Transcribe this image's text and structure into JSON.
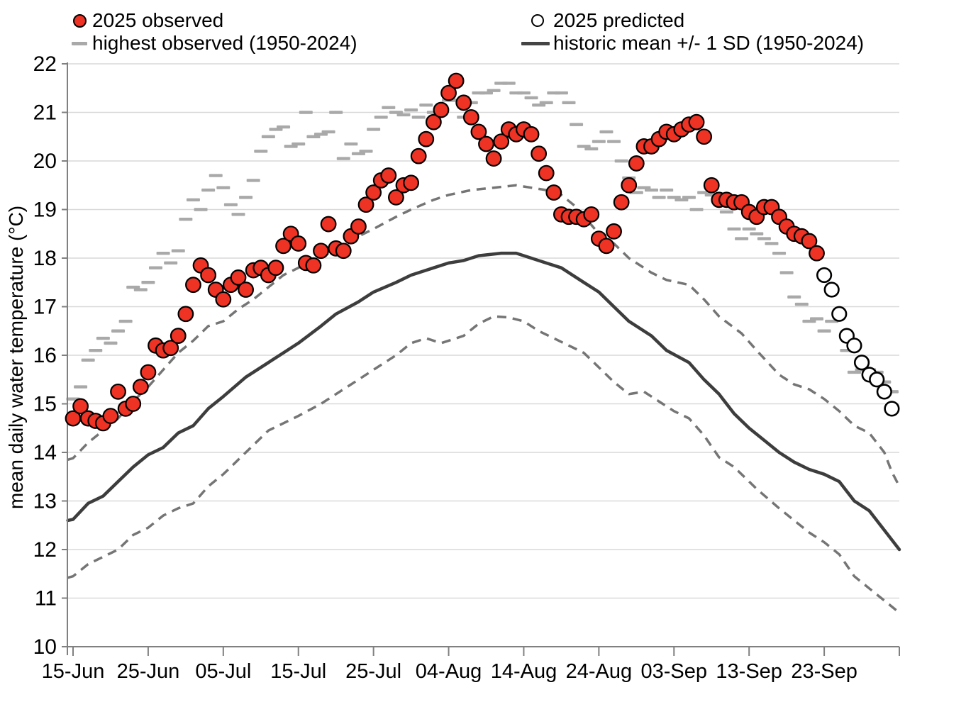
{
  "chart": {
    "y_axis_label": "mean daily water temperature (°C)",
    "legend": [
      {
        "label": "2025 observed",
        "marker": "red-dot-icon"
      },
      {
        "label": "highest observed (1950-2024)",
        "marker": "gray-dash-icon"
      },
      {
        "label": "2025 predicted",
        "marker": "open-circle-icon"
      },
      {
        "label": "historic mean +/- 1 SD (1950-2024)",
        "marker": "dark-line-icon"
      }
    ],
    "colors": {
      "observed_fill": "#ee3224",
      "marker_outline": "#000000",
      "predicted_fill": "#ffffff",
      "highest_dash": "#a9a9a9",
      "sd_dashed_line": "#757575",
      "mean_line": "#3d3d3d",
      "gridline": "#d9d9d9",
      "axis": "#808080",
      "text": "#000000"
    }
  },
  "chart_data": {
    "type": "scatter",
    "title": "",
    "xlabel": "",
    "ylabel": "mean daily water temperature (°C)",
    "ylim": [
      10,
      22
    ],
    "y_ticks": [
      10,
      11,
      12,
      13,
      14,
      15,
      16,
      17,
      18,
      19,
      20,
      21,
      22
    ],
    "x_domain_days": [
      0,
      110
    ],
    "x_tick_days": [
      0,
      10,
      20,
      30,
      40,
      50,
      60,
      70,
      80,
      90,
      100
    ],
    "x_tick_labels": [
      "15-Jun",
      "25-Jun",
      "05-Jul",
      "15-Jul",
      "25-Jul",
      "04-Aug",
      "14-Aug",
      "24-Aug",
      "03-Sep",
      "13-Sep",
      "23-Sep"
    ],
    "grid": "horizontal-only",
    "legend_position": "top",
    "series": [
      {
        "name": "2025 observed",
        "type": "scatter",
        "marker": "filled-circle",
        "start_day": 0,
        "values": [
          14.7,
          14.95,
          14.7,
          14.65,
          14.6,
          14.75,
          15.25,
          14.9,
          15.0,
          15.35,
          15.65,
          16.2,
          16.1,
          16.15,
          16.4,
          16.85,
          17.45,
          17.85,
          17.65,
          17.35,
          17.15,
          17.45,
          17.6,
          17.35,
          17.75,
          17.8,
          17.65,
          17.8,
          18.25,
          18.5,
          18.3,
          17.9,
          17.85,
          18.15,
          18.7,
          18.2,
          18.15,
          18.45,
          18.65,
          19.1,
          19.35,
          19.6,
          19.7,
          19.25,
          19.5,
          19.55,
          20.1,
          20.45,
          20.8,
          21.05,
          21.4,
          21.65,
          21.2,
          20.9,
          20.6,
          20.35,
          20.05,
          20.4,
          20.65,
          20.55,
          20.65,
          20.55,
          20.15,
          19.75,
          19.35,
          18.9,
          18.85,
          18.85,
          18.8,
          18.9,
          18.4,
          18.25,
          18.55,
          19.15,
          19.5,
          19.95,
          20.3,
          20.3,
          20.45,
          20.6,
          20.55,
          20.65,
          20.75,
          20.8,
          20.5,
          19.5,
          19.2,
          19.2,
          19.15,
          19.15,
          18.95,
          18.85,
          19.05,
          19.05,
          18.85,
          18.65,
          18.5,
          18.45,
          18.35,
          18.1
        ]
      },
      {
        "name": "2025 predicted",
        "type": "scatter",
        "marker": "open-circle",
        "start_day": 100,
        "values": [
          17.65,
          17.35,
          16.85,
          16.4,
          16.2,
          15.85,
          15.6,
          15.5,
          15.25,
          14.9
        ]
      },
      {
        "name": "highest observed (1950-2024)",
        "type": "dash-marks",
        "marker": "horizontal-dash",
        "start_day": 0,
        "values": [
          15.1,
          15.35,
          15.9,
          16.1,
          16.35,
          16.25,
          16.5,
          16.7,
          17.4,
          17.35,
          17.5,
          17.8,
          18.1,
          17.9,
          18.15,
          18.8,
          19.2,
          19.0,
          19.4,
          19.7,
          19.45,
          19.1,
          18.9,
          19.25,
          19.6,
          20.2,
          20.5,
          20.65,
          20.7,
          20.3,
          20.35,
          21.0,
          20.5,
          20.55,
          20.6,
          21.0,
          20.05,
          20.35,
          20.15,
          20.2,
          20.65,
          20.9,
          21.1,
          21.0,
          20.95,
          21.05,
          20.9,
          21.15,
          21.0,
          21.1,
          21.25,
          21.25,
          20.9,
          21.2,
          21.4,
          21.4,
          21.45,
          21.6,
          21.6,
          21.4,
          21.4,
          21.3,
          21.15,
          21.2,
          21.4,
          21.4,
          21.2,
          20.75,
          20.3,
          20.25,
          20.4,
          20.6,
          20.4,
          20.0,
          19.65,
          19.35,
          19.45,
          19.4,
          19.25,
          19.4,
          19.25,
          19.2,
          19.25,
          19.0,
          19.35,
          19.3,
          19.2,
          18.95,
          18.6,
          18.4,
          18.6,
          18.5,
          18.4,
          18.3,
          18.1,
          17.7,
          17.2,
          17.05,
          16.7,
          16.75,
          16.5,
          16.7,
          16.9,
          16.1,
          15.65,
          15.7,
          15.7,
          15.65,
          15.45,
          15.25
        ]
      },
      {
        "name": "historic mean (1950-2024)",
        "type": "line",
        "points": [
          [
            -0.7,
            12.6
          ],
          [
            0,
            12.62
          ],
          [
            2,
            12.95
          ],
          [
            4,
            13.1
          ],
          [
            6,
            13.4
          ],
          [
            8,
            13.7
          ],
          [
            10,
            13.95
          ],
          [
            12,
            14.1
          ],
          [
            14,
            14.4
          ],
          [
            16,
            14.55
          ],
          [
            18,
            14.9
          ],
          [
            20,
            15.15
          ],
          [
            23,
            15.55
          ],
          [
            26,
            15.85
          ],
          [
            28,
            16.05
          ],
          [
            30,
            16.25
          ],
          [
            33,
            16.6
          ],
          [
            35,
            16.85
          ],
          [
            38,
            17.1
          ],
          [
            40,
            17.3
          ],
          [
            43,
            17.5
          ],
          [
            45,
            17.65
          ],
          [
            48,
            17.8
          ],
          [
            50,
            17.9
          ],
          [
            52,
            17.95
          ],
          [
            54,
            18.05
          ],
          [
            57,
            18.1
          ],
          [
            59,
            18.1
          ],
          [
            61,
            18.0
          ],
          [
            63,
            17.9
          ],
          [
            65,
            17.8
          ],
          [
            68,
            17.5
          ],
          [
            70,
            17.3
          ],
          [
            72,
            17.0
          ],
          [
            74,
            16.7
          ],
          [
            77,
            16.4
          ],
          [
            79,
            16.1
          ],
          [
            82,
            15.85
          ],
          [
            84,
            15.5
          ],
          [
            86,
            15.2
          ],
          [
            88,
            14.8
          ],
          [
            90,
            14.5
          ],
          [
            92,
            14.25
          ],
          [
            94,
            14.0
          ],
          [
            96,
            13.8
          ],
          [
            98,
            13.65
          ],
          [
            100,
            13.55
          ],
          [
            102,
            13.4
          ],
          [
            104,
            13.0
          ],
          [
            106,
            12.8
          ],
          [
            108,
            12.4
          ],
          [
            110,
            12.0
          ]
        ]
      },
      {
        "name": "historic mean +1 SD (1950-2024)",
        "type": "dashed-line",
        "points": [
          [
            -0.7,
            13.85
          ],
          [
            0,
            13.88
          ],
          [
            2,
            14.2
          ],
          [
            4,
            14.45
          ],
          [
            6,
            14.7
          ],
          [
            8,
            15.05
          ],
          [
            10,
            15.35
          ],
          [
            12,
            15.7
          ],
          [
            14,
            16.05
          ],
          [
            16,
            16.3
          ],
          [
            18,
            16.6
          ],
          [
            20,
            16.7
          ],
          [
            22,
            16.95
          ],
          [
            24,
            17.15
          ],
          [
            26,
            17.4
          ],
          [
            28,
            17.65
          ],
          [
            30,
            17.8
          ],
          [
            33,
            18.05
          ],
          [
            35,
            18.15
          ],
          [
            38,
            18.45
          ],
          [
            40,
            18.6
          ],
          [
            43,
            18.85
          ],
          [
            45,
            19.0
          ],
          [
            48,
            19.2
          ],
          [
            50,
            19.3
          ],
          [
            53,
            19.4
          ],
          [
            56,
            19.45
          ],
          [
            59,
            19.5
          ],
          [
            61,
            19.45
          ],
          [
            63,
            19.4
          ],
          [
            65,
            19.3
          ],
          [
            67,
            19.05
          ],
          [
            70,
            18.5
          ],
          [
            72,
            18.3
          ],
          [
            74,
            18.0
          ],
          [
            77,
            17.7
          ],
          [
            79,
            17.55
          ],
          [
            82,
            17.45
          ],
          [
            84,
            17.15
          ],
          [
            86,
            16.8
          ],
          [
            89,
            16.45
          ],
          [
            91,
            16.1
          ],
          [
            94,
            15.6
          ],
          [
            96,
            15.4
          ],
          [
            98,
            15.3
          ],
          [
            100,
            15.1
          ],
          [
            102,
            14.85
          ],
          [
            104,
            14.55
          ],
          [
            106,
            14.4
          ],
          [
            107,
            14.2
          ],
          [
            108,
            14.0
          ],
          [
            109,
            13.6
          ],
          [
            110,
            13.3
          ]
        ]
      },
      {
        "name": "historic mean -1 SD (1950-2024)",
        "type": "dashed-line",
        "points": [
          [
            -0.7,
            11.42
          ],
          [
            0,
            11.45
          ],
          [
            2,
            11.7
          ],
          [
            4,
            11.85
          ],
          [
            6,
            12.0
          ],
          [
            8,
            12.3
          ],
          [
            10,
            12.45
          ],
          [
            12,
            12.7
          ],
          [
            14,
            12.85
          ],
          [
            16,
            12.95
          ],
          [
            18,
            13.3
          ],
          [
            20,
            13.55
          ],
          [
            22,
            13.85
          ],
          [
            24,
            14.15
          ],
          [
            26,
            14.45
          ],
          [
            28,
            14.6
          ],
          [
            30,
            14.75
          ],
          [
            33,
            15.0
          ],
          [
            35,
            15.2
          ],
          [
            38,
            15.5
          ],
          [
            40,
            15.7
          ],
          [
            43,
            16.0
          ],
          [
            45,
            16.25
          ],
          [
            47,
            16.35
          ],
          [
            49,
            16.25
          ],
          [
            52,
            16.4
          ],
          [
            54,
            16.65
          ],
          [
            56,
            16.8
          ],
          [
            58,
            16.78
          ],
          [
            60,
            16.7
          ],
          [
            62,
            16.5
          ],
          [
            64,
            16.35
          ],
          [
            66,
            16.2
          ],
          [
            68,
            16.05
          ],
          [
            70,
            15.75
          ],
          [
            72,
            15.45
          ],
          [
            74,
            15.2
          ],
          [
            76,
            15.25
          ],
          [
            78,
            15.05
          ],
          [
            80,
            14.85
          ],
          [
            82,
            14.7
          ],
          [
            84,
            14.35
          ],
          [
            86,
            13.9
          ],
          [
            88,
            13.7
          ],
          [
            91,
            13.25
          ],
          [
            94,
            12.85
          ],
          [
            96,
            12.6
          ],
          [
            98,
            12.35
          ],
          [
            100,
            12.15
          ],
          [
            102,
            11.9
          ],
          [
            104,
            11.45
          ],
          [
            106,
            11.2
          ],
          [
            108,
            10.95
          ],
          [
            110,
            10.7
          ]
        ]
      }
    ]
  }
}
